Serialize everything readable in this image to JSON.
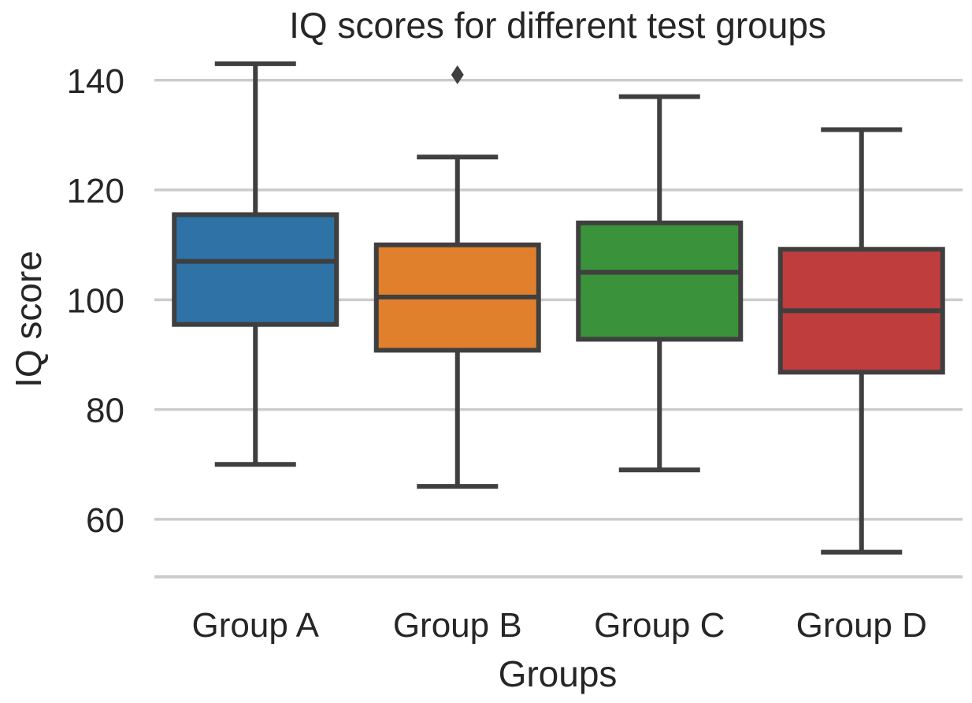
{
  "chart_data": {
    "type": "box",
    "title": "IQ scores for different test groups",
    "xlabel": "Groups",
    "ylabel": "IQ score",
    "ylim": [
      49.5,
      146
    ],
    "yticks": [
      60,
      80,
      100,
      120,
      140
    ],
    "grid": "horizontal",
    "categories": [
      "Group A",
      "Group B",
      "Group C",
      "Group D"
    ],
    "colors": [
      "#2e72a6",
      "#e1802c",
      "#3a923a",
      "#bf3d3d"
    ],
    "edge_color": "#3f3f3f",
    "boxes": [
      {
        "name": "Group A",
        "whisker_low": 70,
        "q1": 95.5,
        "median": 107,
        "q3": 115.5,
        "whisker_high": 143,
        "outliers": []
      },
      {
        "name": "Group B",
        "whisker_low": 66,
        "q1": 90.8,
        "median": 100.5,
        "q3": 110,
        "whisker_high": 126,
        "outliers": [
          141
        ]
      },
      {
        "name": "Group C",
        "whisker_low": 69,
        "q1": 92.8,
        "median": 105,
        "q3": 114,
        "whisker_high": 137,
        "outliers": []
      },
      {
        "name": "Group D",
        "whisker_low": 54,
        "q1": 86.8,
        "median": 98,
        "q3": 109.2,
        "whisker_high": 131,
        "outliers": []
      }
    ]
  }
}
